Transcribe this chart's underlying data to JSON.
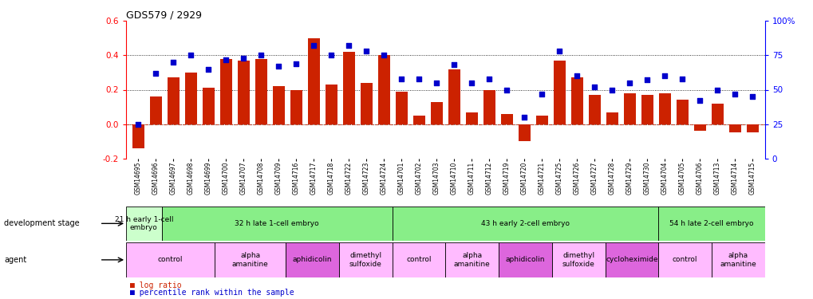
{
  "title": "GDS579 / 2929",
  "samples": [
    "GSM14695",
    "GSM14696",
    "GSM14697",
    "GSM14698",
    "GSM14699",
    "GSM14700",
    "GSM14707",
    "GSM14708",
    "GSM14709",
    "GSM14716",
    "GSM14717",
    "GSM14718",
    "GSM14722",
    "GSM14723",
    "GSM14724",
    "GSM14701",
    "GSM14702",
    "GSM14703",
    "GSM14710",
    "GSM14711",
    "GSM14712",
    "GSM14719",
    "GSM14720",
    "GSM14721",
    "GSM14725",
    "GSM14726",
    "GSM14727",
    "GSM14728",
    "GSM14729",
    "GSM14730",
    "GSM14704",
    "GSM14705",
    "GSM14706",
    "GSM14713",
    "GSM14714",
    "GSM14715"
  ],
  "log_ratio": [
    -0.14,
    0.16,
    0.27,
    0.3,
    0.21,
    0.38,
    0.37,
    0.38,
    0.22,
    0.2,
    0.5,
    0.23,
    0.42,
    0.24,
    0.4,
    0.19,
    0.05,
    0.13,
    0.32,
    0.07,
    0.2,
    0.06,
    -0.1,
    0.05,
    0.37,
    0.27,
    0.17,
    0.07,
    0.18,
    0.17,
    0.18,
    0.14,
    -0.04,
    0.12,
    -0.05,
    -0.05
  ],
  "percentile": [
    25,
    62,
    70,
    75,
    65,
    72,
    73,
    75,
    67,
    69,
    82,
    75,
    82,
    78,
    75,
    58,
    58,
    55,
    68,
    55,
    58,
    50,
    30,
    47,
    78,
    60,
    52,
    50,
    55,
    57,
    60,
    58,
    42,
    50,
    47,
    45
  ],
  "dev_stage_groups": [
    {
      "label": "21 h early 1-cell\nembryo",
      "start": 0,
      "end": 2,
      "color": "#ccffcc"
    },
    {
      "label": "32 h late 1-cell embryo",
      "start": 2,
      "end": 15,
      "color": "#88ee88"
    },
    {
      "label": "43 h early 2-cell embryo",
      "start": 15,
      "end": 30,
      "color": "#88ee88"
    },
    {
      "label": "54 h late 2-cell embryo",
      "start": 30,
      "end": 36,
      "color": "#88ee88"
    }
  ],
  "agent_groups": [
    {
      "label": "control",
      "start": 0,
      "end": 5,
      "color": "#ffbbff"
    },
    {
      "label": "alpha\namanitine",
      "start": 5,
      "end": 9,
      "color": "#ffbbff"
    },
    {
      "label": "aphidicolin",
      "start": 9,
      "end": 12,
      "color": "#dd66dd"
    },
    {
      "label": "dimethyl\nsulfoxide",
      "start": 12,
      "end": 15,
      "color": "#ffbbff"
    },
    {
      "label": "control",
      "start": 15,
      "end": 18,
      "color": "#ffbbff"
    },
    {
      "label": "alpha\namanitine",
      "start": 18,
      "end": 21,
      "color": "#ffbbff"
    },
    {
      "label": "aphidicolin",
      "start": 21,
      "end": 24,
      "color": "#dd66dd"
    },
    {
      "label": "dimethyl\nsulfoxide",
      "start": 24,
      "end": 27,
      "color": "#ffbbff"
    },
    {
      "label": "cycloheximide",
      "start": 27,
      "end": 30,
      "color": "#dd66dd"
    },
    {
      "label": "control",
      "start": 30,
      "end": 33,
      "color": "#ffbbff"
    },
    {
      "label": "alpha\namanitine",
      "start": 33,
      "end": 36,
      "color": "#ffbbff"
    }
  ],
  "bar_color": "#cc2200",
  "dot_color": "#0000cc",
  "ylim": [
    -0.2,
    0.6
  ],
  "y2lim": [
    0,
    100
  ],
  "yticks": [
    -0.2,
    0.0,
    0.2,
    0.4,
    0.6
  ],
  "y2ticks": [
    0,
    25,
    50,
    75,
    100
  ],
  "hlines": [
    0.0,
    0.2,
    0.4
  ],
  "hline_color": "#cc2200",
  "background_color": "#ffffff"
}
